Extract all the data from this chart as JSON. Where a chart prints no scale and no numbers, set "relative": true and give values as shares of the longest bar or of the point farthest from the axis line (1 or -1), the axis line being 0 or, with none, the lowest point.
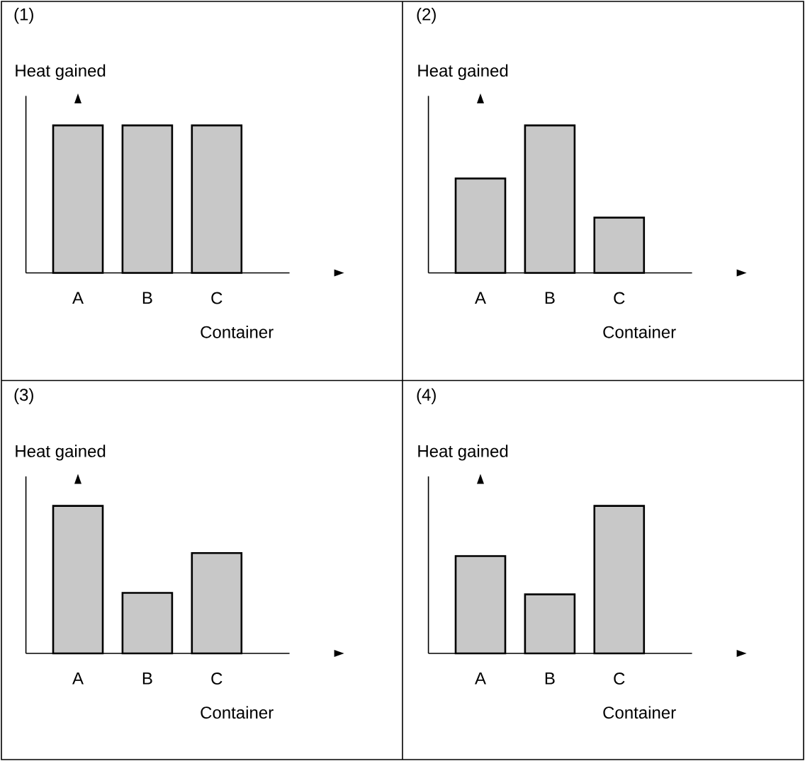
{
  "chart_data": [
    {
      "type": "bar",
      "title": "(1)",
      "ylabel": "Heat gained",
      "xlabel": "Container",
      "categories": [
        "A",
        "B",
        "C"
      ],
      "values": [
        1,
        1,
        1
      ],
      "color": "#c8c8c8",
      "relative": true
    },
    {
      "type": "bar",
      "title": "(2)",
      "ylabel": "Heat gained",
      "xlabel": "Container",
      "categories": [
        "A",
        "B",
        "C"
      ],
      "values": [
        0.64,
        1,
        0.375
      ],
      "color": "#c8c8c8",
      "relative": true
    },
    {
      "type": "bar",
      "title": "(3)",
      "ylabel": "Heat gained",
      "xlabel": "Container",
      "categories": [
        "A",
        "B",
        "C"
      ],
      "values": [
        1,
        0.41,
        0.68
      ],
      "color": "#c8c8c8",
      "relative": true
    },
    {
      "type": "bar",
      "title": "(4)",
      "ylabel": "Heat gained",
      "xlabel": "Container",
      "categories": [
        "A",
        "B",
        "C"
      ],
      "values": [
        0.66,
        0.4,
        1
      ],
      "color": "#c8c8c8",
      "relative": true
    }
  ]
}
